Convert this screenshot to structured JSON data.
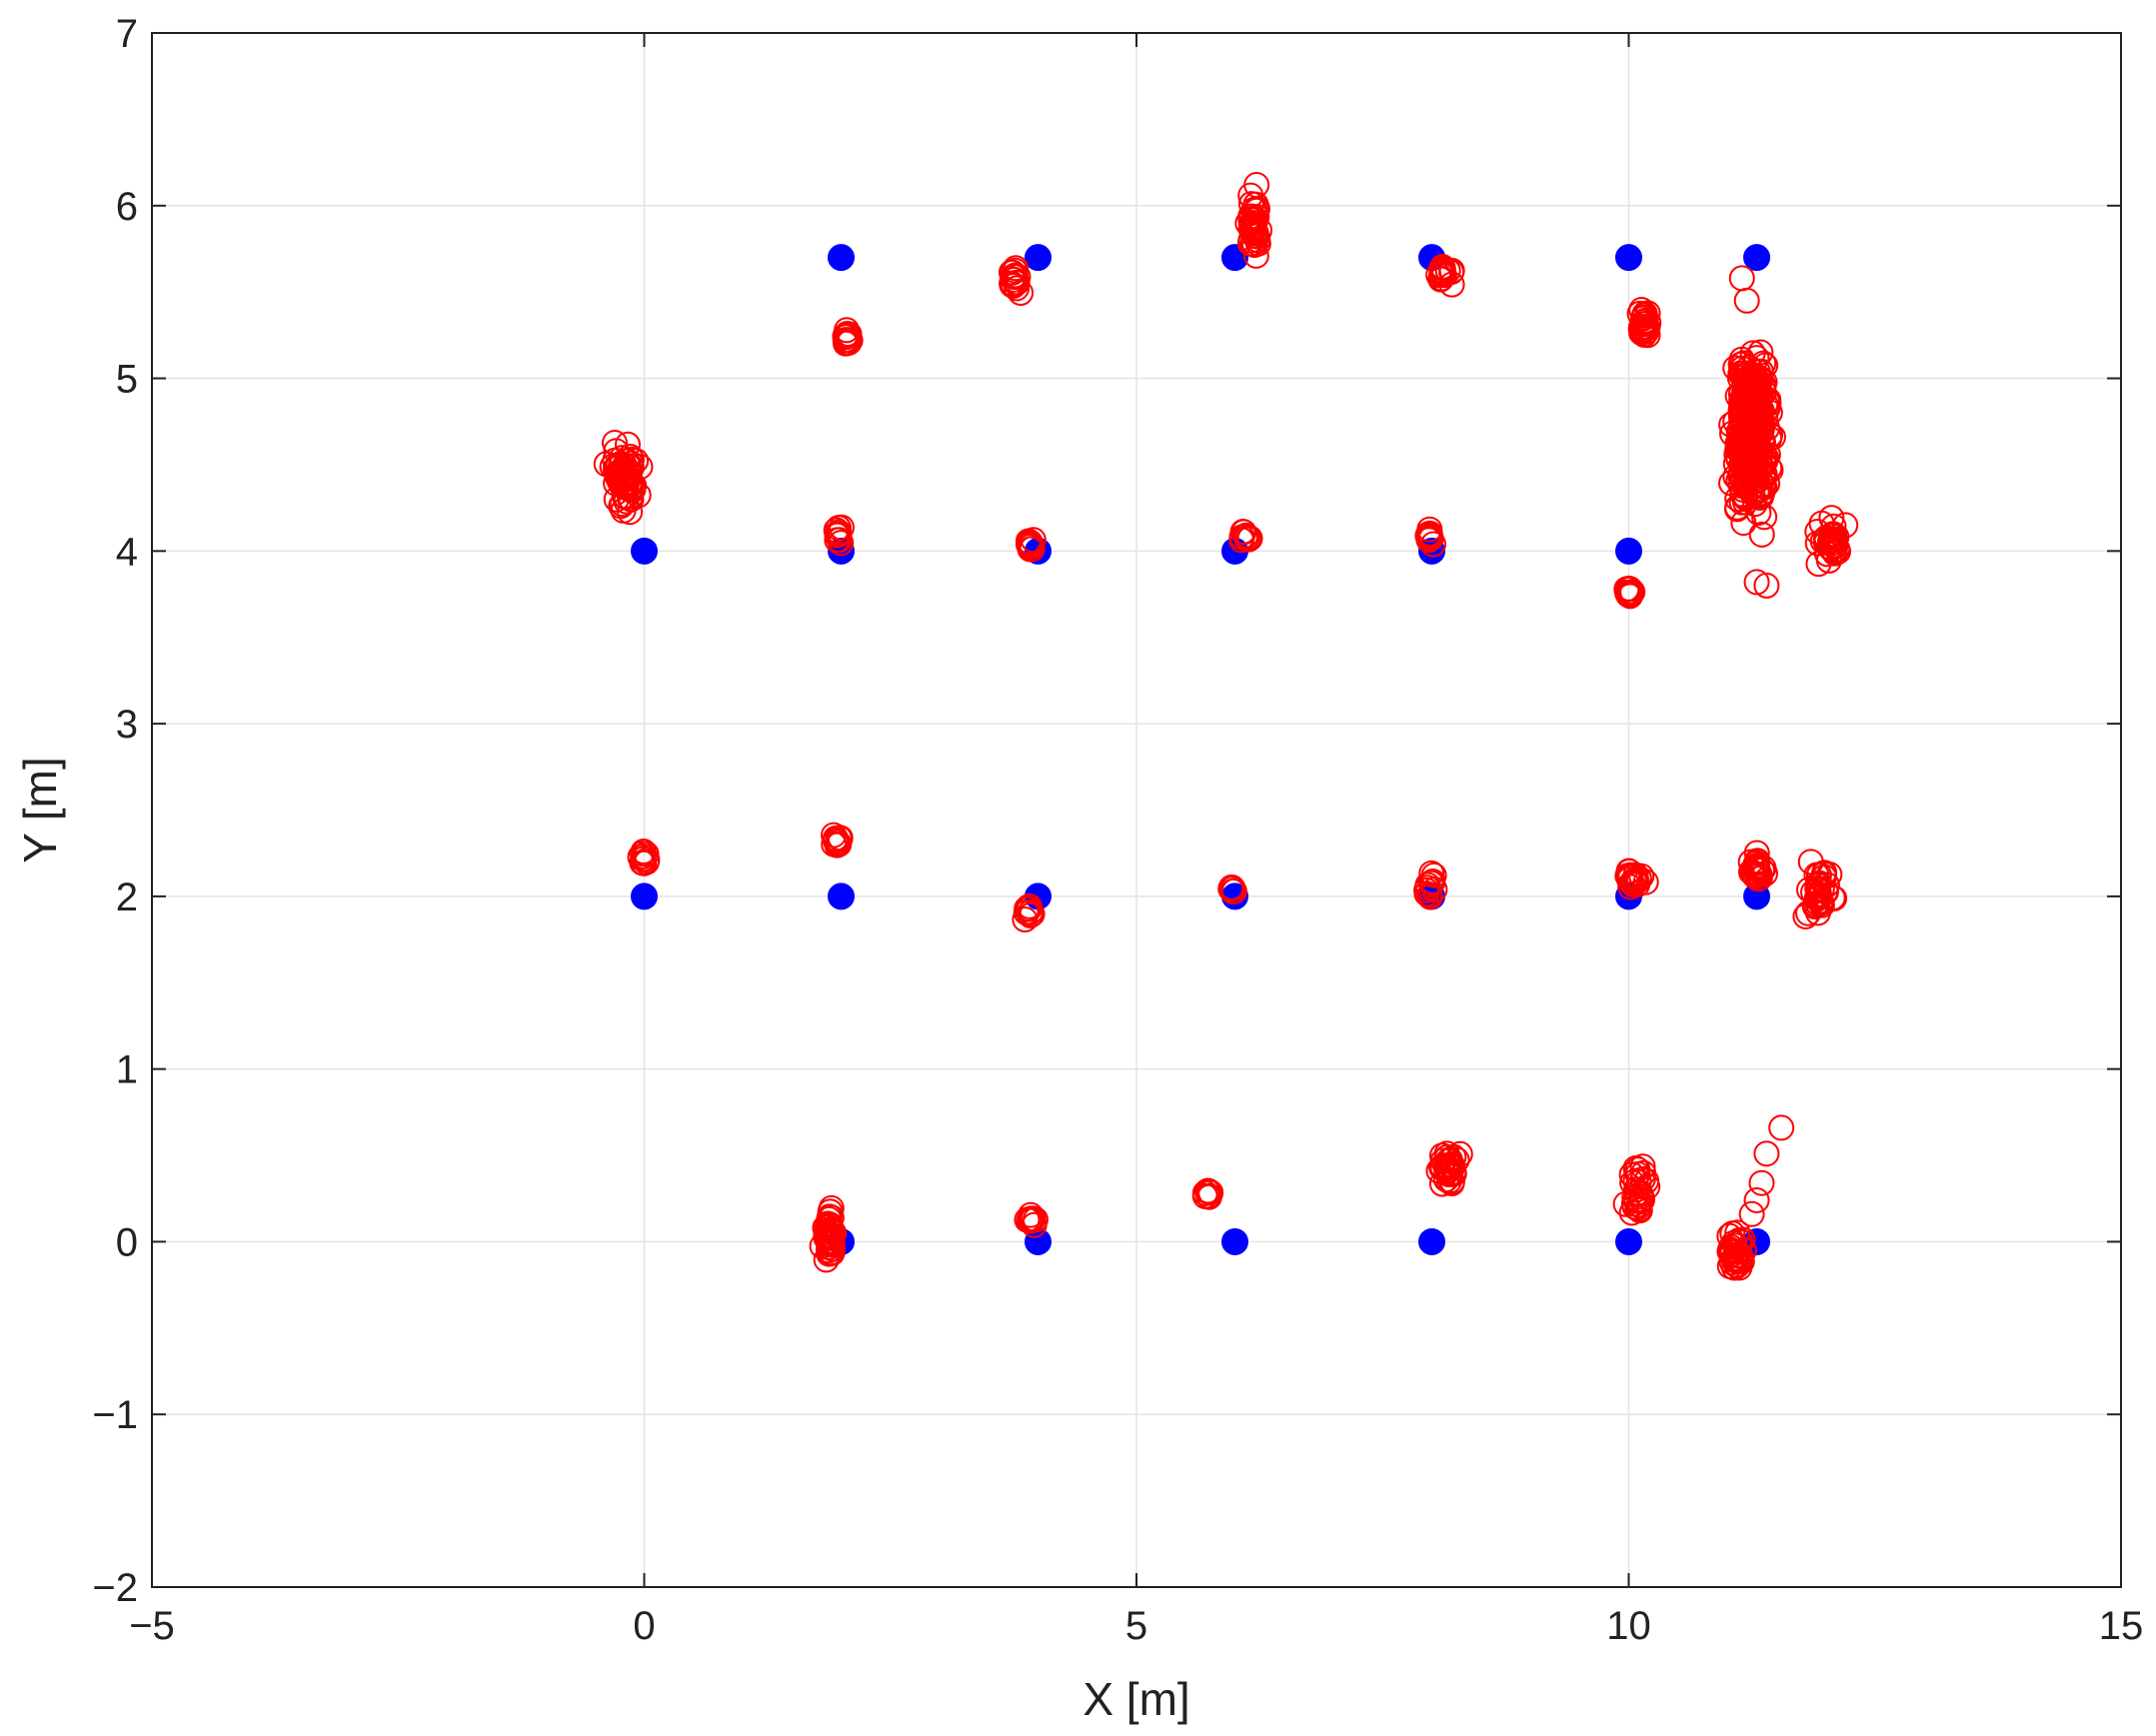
{
  "chart_data": {
    "type": "scatter",
    "title": "",
    "xlabel": "X [m]",
    "ylabel": "Y [m]",
    "xlim": [
      -5,
      15
    ],
    "ylim": [
      -2,
      7
    ],
    "xticks": [
      -5,
      0,
      5,
      10,
      15
    ],
    "yticks": [
      -2,
      -1,
      0,
      1,
      2,
      3,
      4,
      5,
      6,
      7
    ],
    "xtick_labels": [
      "−5",
      "0",
      "5",
      "10",
      "15"
    ],
    "ytick_labels": [
      "−2",
      "−1",
      "0",
      "1",
      "2",
      "3",
      "4",
      "5",
      "6",
      "7"
    ],
    "grid": true,
    "colors": {
      "ground_truth": "#0000ff",
      "estimates": "#ff0000",
      "grid": "#e3e3e3",
      "axes": "#222222"
    },
    "series": [
      {
        "marker": "filled-circle",
        "color": "#0000ff",
        "points": [
          [
            0,
            4
          ],
          [
            0,
            2
          ],
          [
            2,
            5.7
          ],
          [
            2,
            4
          ],
          [
            2,
            2
          ],
          [
            2,
            0
          ],
          [
            4,
            5.7
          ],
          [
            4,
            4
          ],
          [
            4,
            2
          ],
          [
            4,
            0
          ],
          [
            6,
            5.7
          ],
          [
            6,
            4
          ],
          [
            6,
            2
          ],
          [
            6,
            0
          ],
          [
            8,
            5.7
          ],
          [
            8,
            4
          ],
          [
            8,
            2
          ],
          [
            8,
            0
          ],
          [
            10,
            5.7
          ],
          [
            10,
            4
          ],
          [
            10,
            2
          ],
          [
            10,
            0
          ],
          [
            11.3,
            5.7
          ],
          [
            11.3,
            2
          ],
          [
            11.3,
            0
          ]
        ]
      },
      {
        "marker": "open-circle",
        "color": "#ff0000",
        "clusters": [
          {
            "x": -0.2,
            "y": 4.42,
            "sx": 0.1,
            "sy": 0.13,
            "n": 60
          },
          {
            "x": 0.0,
            "y": 2.22,
            "sx": 0.03,
            "sy": 0.03,
            "n": 10
          },
          {
            "x": 2.05,
            "y": 5.23,
            "sx": 0.03,
            "sy": 0.04,
            "n": 12
          },
          {
            "x": 1.97,
            "y": 4.1,
            "sx": 0.03,
            "sy": 0.03,
            "n": 10
          },
          {
            "x": 1.97,
            "y": 2.33,
            "sx": 0.03,
            "sy": 0.04,
            "n": 10
          },
          {
            "x": 1.88,
            "y": 0.04,
            "sx": 0.04,
            "sy": 0.09,
            "n": 40
          },
          {
            "x": 3.78,
            "y": 5.57,
            "sx": 0.04,
            "sy": 0.05,
            "n": 18
          },
          {
            "x": 3.93,
            "y": 4.03,
            "sx": 0.03,
            "sy": 0.02,
            "n": 10
          },
          {
            "x": 3.9,
            "y": 1.9,
            "sx": 0.03,
            "sy": 0.03,
            "n": 10
          },
          {
            "x": 3.93,
            "y": 0.13,
            "sx": 0.03,
            "sy": 0.03,
            "n": 10
          },
          {
            "x": 6.2,
            "y": 5.88,
            "sx": 0.04,
            "sy": 0.1,
            "n": 35
          },
          {
            "x": 6.1,
            "y": 4.08,
            "sx": 0.05,
            "sy": 0.02,
            "n": 10
          },
          {
            "x": 5.97,
            "y": 2.05,
            "sx": 0.02,
            "sy": 0.02,
            "n": 8
          },
          {
            "x": 5.73,
            "y": 0.28,
            "sx": 0.03,
            "sy": 0.02,
            "n": 8
          },
          {
            "x": 8.13,
            "y": 5.6,
            "sx": 0.05,
            "sy": 0.04,
            "n": 15
          },
          {
            "x": 7.98,
            "y": 4.08,
            "sx": 0.04,
            "sy": 0.03,
            "n": 10
          },
          {
            "x": 7.98,
            "y": 2.06,
            "sx": 0.04,
            "sy": 0.05,
            "n": 12
          },
          {
            "x": 8.15,
            "y": 0.42,
            "sx": 0.08,
            "sy": 0.08,
            "n": 30
          },
          {
            "x": 10.15,
            "y": 5.3,
            "sx": 0.04,
            "sy": 0.07,
            "n": 25
          },
          {
            "x": 10.0,
            "y": 3.75,
            "sx": 0.03,
            "sy": 0.03,
            "n": 10
          },
          {
            "x": 10.07,
            "y": 2.1,
            "sx": 0.06,
            "sy": 0.05,
            "n": 18
          },
          {
            "x": 10.1,
            "y": 0.3,
            "sx": 0.08,
            "sy": 0.1,
            "n": 30
          },
          {
            "x": 11.25,
            "y": 4.7,
            "sx": 0.12,
            "sy": 0.33,
            "n": 320
          },
          {
            "x": 12.05,
            "y": 4.05,
            "sx": 0.1,
            "sy": 0.07,
            "n": 30
          },
          {
            "x": 11.3,
            "y": 2.15,
            "sx": 0.06,
            "sy": 0.06,
            "n": 25
          },
          {
            "x": 11.95,
            "y": 2.0,
            "sx": 0.1,
            "sy": 0.11,
            "n": 35
          },
          {
            "x": 11.1,
            "y": -0.05,
            "sx": 0.05,
            "sy": 0.07,
            "n": 35
          }
        ],
        "outliers": [
          [
            11.55,
            0.66
          ],
          [
            11.4,
            0.51
          ],
          [
            11.35,
            0.34
          ],
          [
            11.3,
            0.24
          ],
          [
            11.25,
            0.16
          ],
          [
            11.4,
            3.8
          ],
          [
            11.3,
            3.82
          ],
          [
            11.15,
            5.58
          ],
          [
            11.2,
            5.45
          ],
          [
            12.2,
            4.15
          ],
          [
            11.85,
            2.2
          ],
          [
            6.22,
            6.12
          ]
        ]
      }
    ]
  }
}
